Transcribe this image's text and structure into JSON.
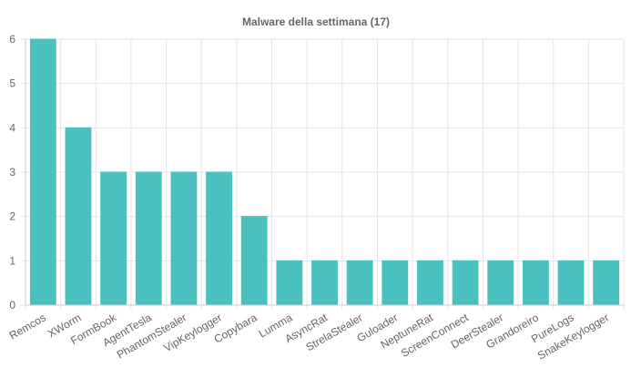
{
  "chart_data": {
    "type": "bar",
    "title": "Malware della settimana (17)",
    "xlabel": "",
    "ylabel": "",
    "categories": [
      "Remcos",
      "XWorm",
      "FormBook",
      "AgentTesla",
      "PhantomStealer",
      "VipKeylogger",
      "Copybara",
      "Lumma",
      "AsyncRat",
      "StrelaStealer",
      "Guloader",
      "NeptuneRat",
      "ScreenConnect",
      "DeerStealer",
      "Grandoreiro",
      "PureLogs",
      "SnakeKeylogger"
    ],
    "values": [
      6,
      4,
      3,
      3,
      3,
      3,
      2,
      1,
      1,
      1,
      1,
      1,
      1,
      1,
      1,
      1,
      1
    ],
    "ylim": [
      0,
      6
    ],
    "yticks": [
      "0",
      "1",
      "2",
      "3",
      "4",
      "5",
      "6"
    ],
    "grid": true,
    "legend": "none",
    "bar_color": "#4bc0c0",
    "bar_border_color": "#4bc0c0"
  }
}
